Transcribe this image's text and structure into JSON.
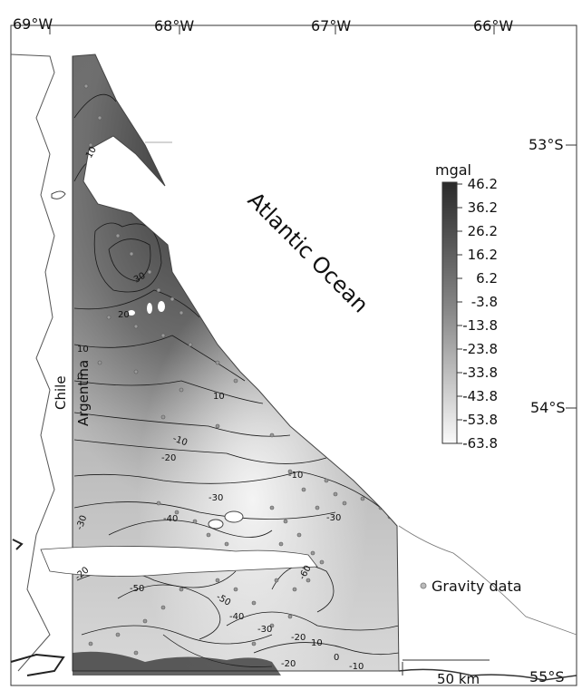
{
  "map": {
    "longitude_labels": [
      "69°W",
      "68°W",
      "67°W",
      "66°W"
    ],
    "latitude_labels": [
      "53°S",
      "54°S",
      "55°S"
    ],
    "ocean_label": "Atlantic Ocean",
    "country_labels": [
      "Chile",
      "Argentina"
    ],
    "legend": {
      "unit": "mgal",
      "values": [
        "46.2",
        "36.2",
        "26.2",
        "16.2",
        "6.2",
        "-3.8",
        "-13.8",
        "-23.8",
        "-33.8",
        "-43.8",
        "-53.8",
        "-63.8"
      ]
    },
    "contour_labels": [
      "10",
      "30",
      "20",
      "10",
      "0",
      "10",
      "-10",
      "-20",
      "-10",
      "-30",
      "-30",
      "-40",
      "-30",
      "-50",
      "-50",
      "-40",
      "-30",
      "-20",
      "10",
      "-20",
      "-20",
      "0",
      "-10",
      "-60"
    ],
    "data_legend_label": "Gravity data",
    "scale_bar": "50 km"
  }
}
